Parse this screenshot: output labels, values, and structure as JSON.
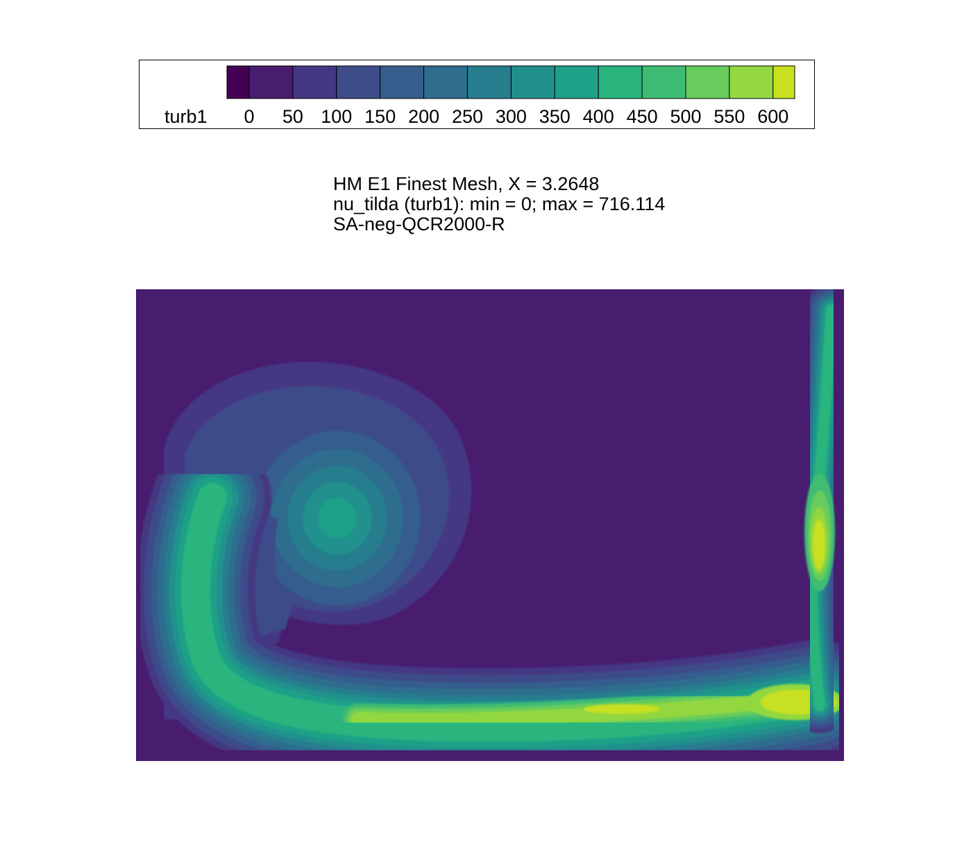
{
  "chart_data": {
    "type": "heatmap",
    "title_lines": [
      "HM E1 Finest Mesh, X = 3.2648",
      "nu_tilda (turb1): min = 0; max = 716.114",
      "SA-neg-QCR2000-R"
    ],
    "legend": {
      "variable_label": "turb1",
      "placement": "top",
      "levels": [
        -25,
        0,
        50,
        100,
        150,
        200,
        250,
        300,
        350,
        400,
        450,
        500,
        550,
        600,
        650
      ],
      "tick_values": [
        0,
        50,
        100,
        150,
        200,
        250,
        300,
        350,
        400,
        450,
        500,
        550,
        600
      ],
      "tick_labels": [
        "0",
        "50",
        "100",
        "150",
        "200",
        "250",
        "300",
        "350",
        "400",
        "450",
        "500",
        "550",
        "600"
      ],
      "colors": [
        "#440154",
        "#481c6e",
        "#453882",
        "#3e4c8a",
        "#365d8d",
        "#2f6d8e",
        "#287d8e",
        "#21908d",
        "#1fa088",
        "#29b47e",
        "#3fbc73",
        "#67cc5c",
        "#93d741",
        "#c8e020",
        "#fde725"
      ]
    },
    "field": {
      "min": 0,
      "max": 716.114,
      "background_value": 25,
      "features": [
        {
          "name": "vortex",
          "peak_value": 390,
          "ring_spacing": 50
        },
        {
          "name": "spiral-arm",
          "peak_value": 460
        },
        {
          "name": "bottom-wake",
          "peak_value": 640
        },
        {
          "name": "right-wall-layer",
          "peak_value": 640
        }
      ]
    },
    "grid": false
  }
}
